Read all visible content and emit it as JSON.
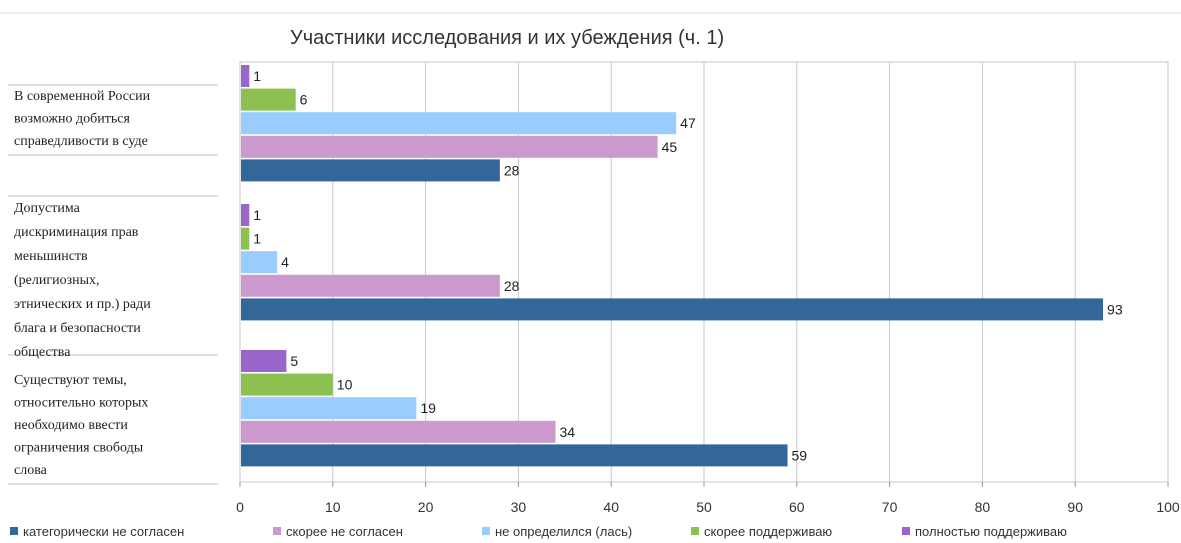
{
  "chart_data": {
    "type": "bar",
    "orientation": "horizontal",
    "title": "Участники исследования и их убеждения (ч. 1)",
    "categories": [
      [
        "В современной России",
        "возможно добиться",
        "справедливости в суде"
      ],
      [
        "Допустима",
        "дискриминация прав",
        "меньшинств",
        "(религиозных,",
        "этнических и пр.) ради",
        "блага и безопасности",
        "общества"
      ],
      [
        "Существуют темы,",
        "относительно которых",
        "необходимо ввести",
        "ограничения свободы",
        "слова"
      ]
    ],
    "series": [
      {
        "name": "категорически не согласен",
        "color": "#336699",
        "values": [
          28,
          93,
          59
        ]
      },
      {
        "name": "скорее не согласен",
        "color": "#cc99cc",
        "values": [
          45,
          28,
          34
        ]
      },
      {
        "name": "не определился (лась)",
        "color": "#99ccff",
        "values": [
          47,
          4,
          19
        ]
      },
      {
        "name": "скорее поддерживаю",
        "color": "#8cc152",
        "values": [
          6,
          1,
          10
        ]
      },
      {
        "name": "полностью поддерживаю",
        "color": "#9966cc",
        "values": [
          1,
          1,
          5
        ]
      }
    ],
    "xlim": [
      0,
      100
    ],
    "xticks": [
      "0",
      "10",
      "20",
      "30",
      "40",
      "50",
      "60",
      "70",
      "80",
      "90",
      "100"
    ],
    "grid": true,
    "legend_position": "bottom"
  }
}
